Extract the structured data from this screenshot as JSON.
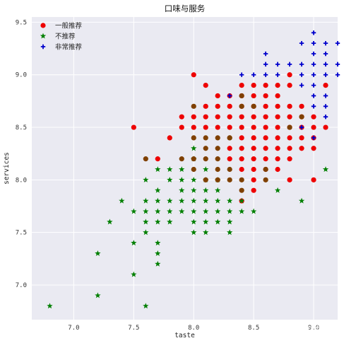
{
  "chart_data": {
    "type": "scatter",
    "title": "口味与服务",
    "xlabel": "taste",
    "ylabel": "services",
    "xlim": [
      6.65,
      9.2
    ],
    "ylim": [
      6.67,
      9.55
    ],
    "xticks": [
      "7.0",
      "7.5",
      "8.0",
      "8.5",
      "9.0"
    ],
    "yticks": [
      "7.0",
      "7.5",
      "8.0",
      "8.5",
      "9.0",
      "9.5"
    ],
    "grid": true,
    "legend_position": "top-left",
    "series": [
      {
        "name": "一般推荐",
        "marker": "circle",
        "color": "#ee0000",
        "points": [
          [
            8.0,
            9.0
          ],
          [
            8.1,
            8.9
          ],
          [
            8.2,
            8.8
          ],
          [
            8.3,
            8.8
          ],
          [
            8.4,
            8.8
          ],
          [
            8.5,
            8.8
          ],
          [
            8.6,
            8.8
          ],
          [
            8.7,
            8.8
          ],
          [
            7.9,
            8.6
          ],
          [
            8.0,
            8.6
          ],
          [
            8.1,
            8.6
          ],
          [
            8.2,
            8.6
          ],
          [
            8.3,
            8.6
          ],
          [
            8.4,
            8.6
          ],
          [
            8.5,
            8.6
          ],
          [
            8.6,
            8.6
          ],
          [
            8.7,
            8.6
          ],
          [
            8.8,
            8.6
          ],
          [
            8.9,
            8.6
          ],
          [
            9.0,
            8.6
          ],
          [
            8.4,
            8.9
          ],
          [
            8.5,
            8.9
          ],
          [
            8.6,
            8.9
          ],
          [
            8.7,
            8.9
          ],
          [
            8.8,
            8.9
          ],
          [
            9.1,
            8.9
          ],
          [
            8.1,
            8.7
          ],
          [
            8.2,
            8.7
          ],
          [
            8.3,
            8.7
          ],
          [
            8.4,
            8.7
          ],
          [
            8.5,
            8.7
          ],
          [
            8.6,
            8.7
          ],
          [
            8.7,
            8.7
          ],
          [
            8.8,
            8.7
          ],
          [
            8.9,
            8.7
          ],
          [
            7.9,
            8.5
          ],
          [
            8.0,
            8.5
          ],
          [
            8.1,
            8.5
          ],
          [
            8.2,
            8.5
          ],
          [
            8.3,
            8.5
          ],
          [
            8.4,
            8.5
          ],
          [
            8.5,
            8.5
          ],
          [
            8.6,
            8.5
          ],
          [
            8.7,
            8.5
          ],
          [
            8.8,
            8.5
          ],
          [
            8.9,
            8.5
          ],
          [
            9.0,
            8.5
          ],
          [
            9.1,
            8.5
          ],
          [
            8.8,
            9.0
          ],
          [
            7.5,
            8.5
          ],
          [
            7.8,
            8.4
          ],
          [
            8.4,
            8.4
          ],
          [
            8.5,
            8.4
          ],
          [
            8.6,
            8.4
          ],
          [
            8.7,
            8.4
          ],
          [
            8.8,
            8.4
          ],
          [
            8.9,
            8.4
          ],
          [
            9.0,
            8.4
          ],
          [
            8.3,
            8.3
          ],
          [
            8.4,
            8.3
          ],
          [
            8.5,
            8.3
          ],
          [
            8.6,
            8.3
          ],
          [
            8.7,
            8.3
          ],
          [
            8.8,
            8.3
          ],
          [
            8.9,
            8.3
          ],
          [
            9.0,
            8.3
          ],
          [
            7.7,
            8.2
          ],
          [
            8.3,
            8.2
          ],
          [
            8.4,
            8.2
          ],
          [
            8.5,
            8.2
          ],
          [
            8.6,
            8.2
          ],
          [
            8.7,
            8.2
          ],
          [
            8.8,
            8.2
          ],
          [
            8.4,
            8.1
          ],
          [
            8.5,
            8.1
          ],
          [
            8.6,
            8.1
          ],
          [
            8.7,
            8.1
          ],
          [
            8.5,
            8.0
          ],
          [
            8.8,
            8.0
          ],
          [
            9.0,
            8.0
          ],
          [
            8.5,
            7.9
          ],
          [
            8.4,
            7.8
          ]
        ]
      },
      {
        "name": "不推荐",
        "marker": "star",
        "color": "#007f00",
        "points": [
          [
            6.8,
            6.8
          ],
          [
            7.2,
            6.9
          ],
          [
            7.2,
            7.3
          ],
          [
            7.3,
            7.6
          ],
          [
            7.4,
            7.8
          ],
          [
            7.5,
            7.7
          ],
          [
            7.5,
            7.4
          ],
          [
            7.5,
            7.1
          ],
          [
            7.6,
            8.0
          ],
          [
            7.6,
            7.8
          ],
          [
            7.6,
            7.7
          ],
          [
            7.6,
            7.6
          ],
          [
            7.6,
            7.5
          ],
          [
            7.6,
            6.8
          ],
          [
            7.7,
            8.1
          ],
          [
            7.7,
            7.9
          ],
          [
            7.7,
            7.8
          ],
          [
            7.7,
            7.7
          ],
          [
            7.7,
            7.6
          ],
          [
            7.7,
            7.4
          ],
          [
            7.7,
            7.3
          ],
          [
            7.7,
            7.2
          ],
          [
            7.8,
            8.1
          ],
          [
            7.8,
            8.0
          ],
          [
            7.8,
            7.8
          ],
          [
            7.8,
            7.7
          ],
          [
            7.8,
            7.6
          ],
          [
            7.9,
            8.1
          ],
          [
            7.9,
            8.0
          ],
          [
            7.9,
            7.9
          ],
          [
            7.9,
            7.8
          ],
          [
            7.9,
            7.7
          ],
          [
            8.0,
            8.0
          ],
          [
            8.0,
            7.9
          ],
          [
            8.0,
            7.8
          ],
          [
            8.0,
            7.7
          ],
          [
            8.0,
            7.6
          ],
          [
            8.0,
            7.5
          ],
          [
            8.1,
            8.0
          ],
          [
            8.1,
            7.9
          ],
          [
            8.1,
            7.8
          ],
          [
            8.1,
            7.7
          ],
          [
            8.1,
            7.6
          ],
          [
            8.1,
            7.5
          ],
          [
            8.2,
            8.0
          ],
          [
            8.2,
            7.9
          ],
          [
            8.2,
            7.8
          ],
          [
            8.2,
            7.7
          ],
          [
            8.2,
            7.6
          ],
          [
            8.3,
            7.8
          ],
          [
            8.3,
            7.7
          ],
          [
            8.3,
            7.6
          ],
          [
            8.3,
            7.5
          ],
          [
            8.4,
            7.8
          ],
          [
            8.4,
            7.7
          ],
          [
            8.5,
            7.7
          ],
          [
            8.7,
            7.9
          ],
          [
            8.9,
            7.8
          ],
          [
            9.1,
            8.1
          ],
          [
            8.0,
            8.2
          ],
          [
            8.0,
            8.3
          ],
          [
            8.1,
            8.1
          ]
        ]
      },
      {
        "name": "非常推荐",
        "marker": "plus",
        "color": "#0000cc",
        "points": [
          [
            9.0,
            9.4
          ],
          [
            8.9,
            9.3
          ],
          [
            9.0,
            9.3
          ],
          [
            9.1,
            9.3
          ],
          [
            9.2,
            9.3
          ],
          [
            8.6,
            9.2
          ],
          [
            9.0,
            9.2
          ],
          [
            9.1,
            9.2
          ],
          [
            8.6,
            9.1
          ],
          [
            8.7,
            9.1
          ],
          [
            8.8,
            9.1
          ],
          [
            8.9,
            9.1
          ],
          [
            9.0,
            9.1
          ],
          [
            9.1,
            9.1
          ],
          [
            9.2,
            9.1
          ],
          [
            8.6,
            9.0
          ],
          [
            8.7,
            9.0
          ],
          [
            8.9,
            9.0
          ],
          [
            9.0,
            9.0
          ],
          [
            9.1,
            9.0
          ],
          [
            9.2,
            9.0
          ],
          [
            8.4,
            9.0
          ],
          [
            8.5,
            9.0
          ],
          [
            8.9,
            8.9
          ],
          [
            9.0,
            8.9
          ],
          [
            9.0,
            8.8
          ],
          [
            9.1,
            8.8
          ],
          [
            9.0,
            8.7
          ],
          [
            9.1,
            8.7
          ],
          [
            9.1,
            8.6
          ],
          [
            8.9,
            8.5
          ],
          [
            9.0,
            8.4
          ],
          [
            8.3,
            8.8
          ],
          [
            8.5,
            8.7
          ]
        ]
      },
      {
        "name": "",
        "marker": "circle",
        "color": "#7f4000",
        "points": [
          [
            8.0,
            8.7
          ],
          [
            7.6,
            8.2
          ],
          [
            7.9,
            8.2
          ],
          [
            8.0,
            8.2
          ],
          [
            8.1,
            8.2
          ],
          [
            8.2,
            8.2
          ],
          [
            8.0,
            8.1
          ],
          [
            8.1,
            8.0
          ],
          [
            8.2,
            8.1
          ],
          [
            8.3,
            8.1
          ],
          [
            8.2,
            8.0
          ],
          [
            8.3,
            8.0
          ],
          [
            8.4,
            8.0
          ],
          [
            8.6,
            8.0
          ],
          [
            8.4,
            7.9
          ],
          [
            8.0,
            8.4
          ],
          [
            8.1,
            8.4
          ],
          [
            8.2,
            8.4
          ],
          [
            8.3,
            8.4
          ],
          [
            8.2,
            8.3
          ],
          [
            8.1,
            8.3
          ],
          [
            8.6,
            8.1
          ],
          [
            8.9,
            8.6
          ],
          [
            8.8,
            8.5
          ],
          [
            8.5,
            8.7
          ],
          [
            8.4,
            8.7
          ],
          [
            8.4,
            8.8
          ],
          [
            8.3,
            8.4
          ]
        ]
      }
    ]
  },
  "watermark": "知乎 @布道"
}
